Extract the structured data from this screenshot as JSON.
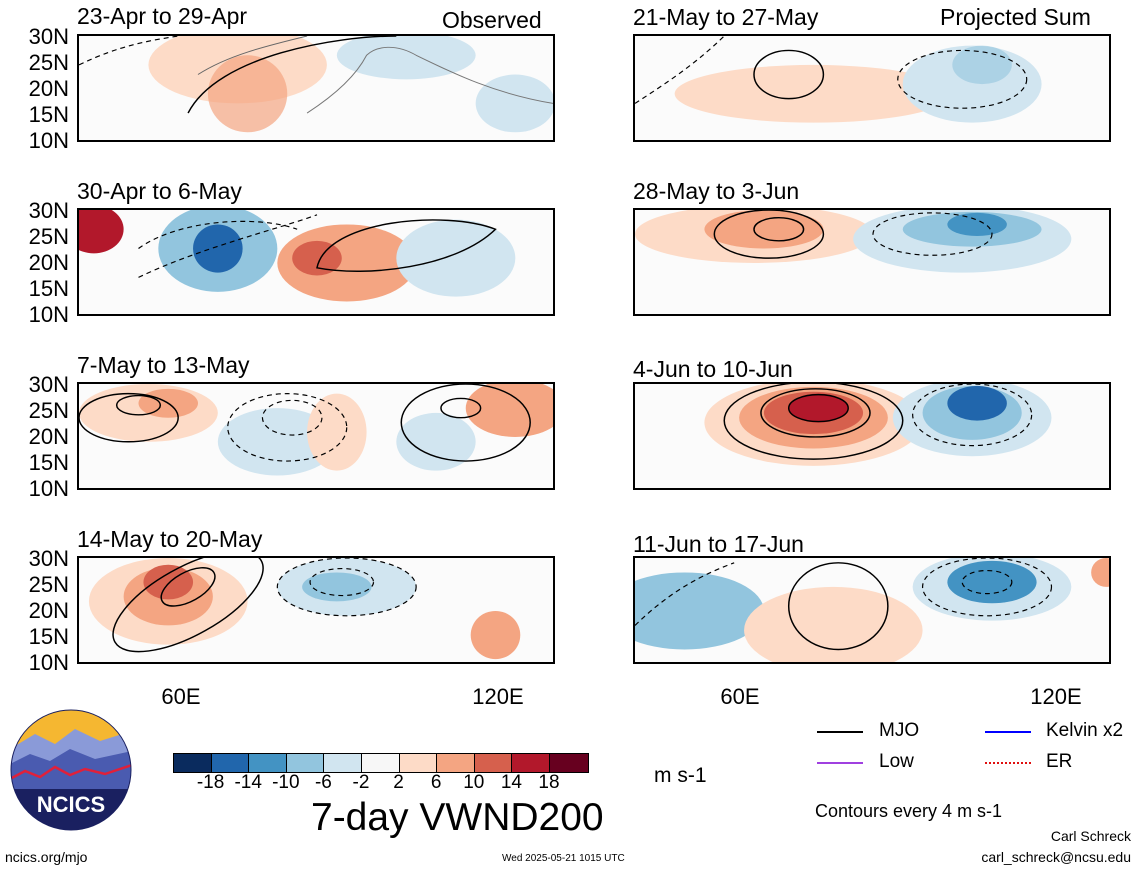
{
  "header": {
    "left_tag": "Observed",
    "right_tag": "Projected Sum"
  },
  "panels_left": [
    {
      "period": "23-Apr to 29-Apr"
    },
    {
      "period": "30-Apr to 6-May"
    },
    {
      "period": "7-May to 13-May"
    },
    {
      "period": "14-May to 20-May"
    }
  ],
  "panels_right": [
    {
      "period": "21-May to 27-May"
    },
    {
      "period": "28-May to 3-Jun"
    },
    {
      "period": "4-Jun to 10-Jun"
    },
    {
      "period": "11-Jun to 17-Jun"
    }
  ],
  "axes": {
    "lat_labels": [
      "30N",
      "25N",
      "20N",
      "15N",
      "10N"
    ],
    "lon_labels": [
      "60E",
      "120E"
    ]
  },
  "colorbar": {
    "ticks": [
      "-18",
      "-14",
      "-10",
      "-6",
      "-2",
      "2",
      "6",
      "10",
      "14",
      "18"
    ],
    "colors": [
      "#0a2b5e",
      "#2166ac",
      "#4393c3",
      "#92c5de",
      "#d1e5f0",
      "#f7f7f7",
      "#fddbc7",
      "#f4a582",
      "#d6604d",
      "#b2182b",
      "#67001f"
    ],
    "unit": "m s-1"
  },
  "title": "7-day VWND200",
  "legend": {
    "items": [
      {
        "label": "MJO",
        "color": "#000000"
      },
      {
        "label": "Kelvin x2",
        "color": "#0000ff"
      },
      {
        "label": "Low",
        "color": "#a040e0"
      },
      {
        "label": "ER",
        "color": "#e01010"
      }
    ],
    "note": "Contours every 4 m s-1"
  },
  "footer": {
    "site": "ncics.org/mjo",
    "timestamp": "Wed 2025-05-21 1015 UTC",
    "author": "Carl Schreck",
    "email": "carl_schreck@ncsu.edu"
  },
  "logo": {
    "text": "NCICS"
  }
}
